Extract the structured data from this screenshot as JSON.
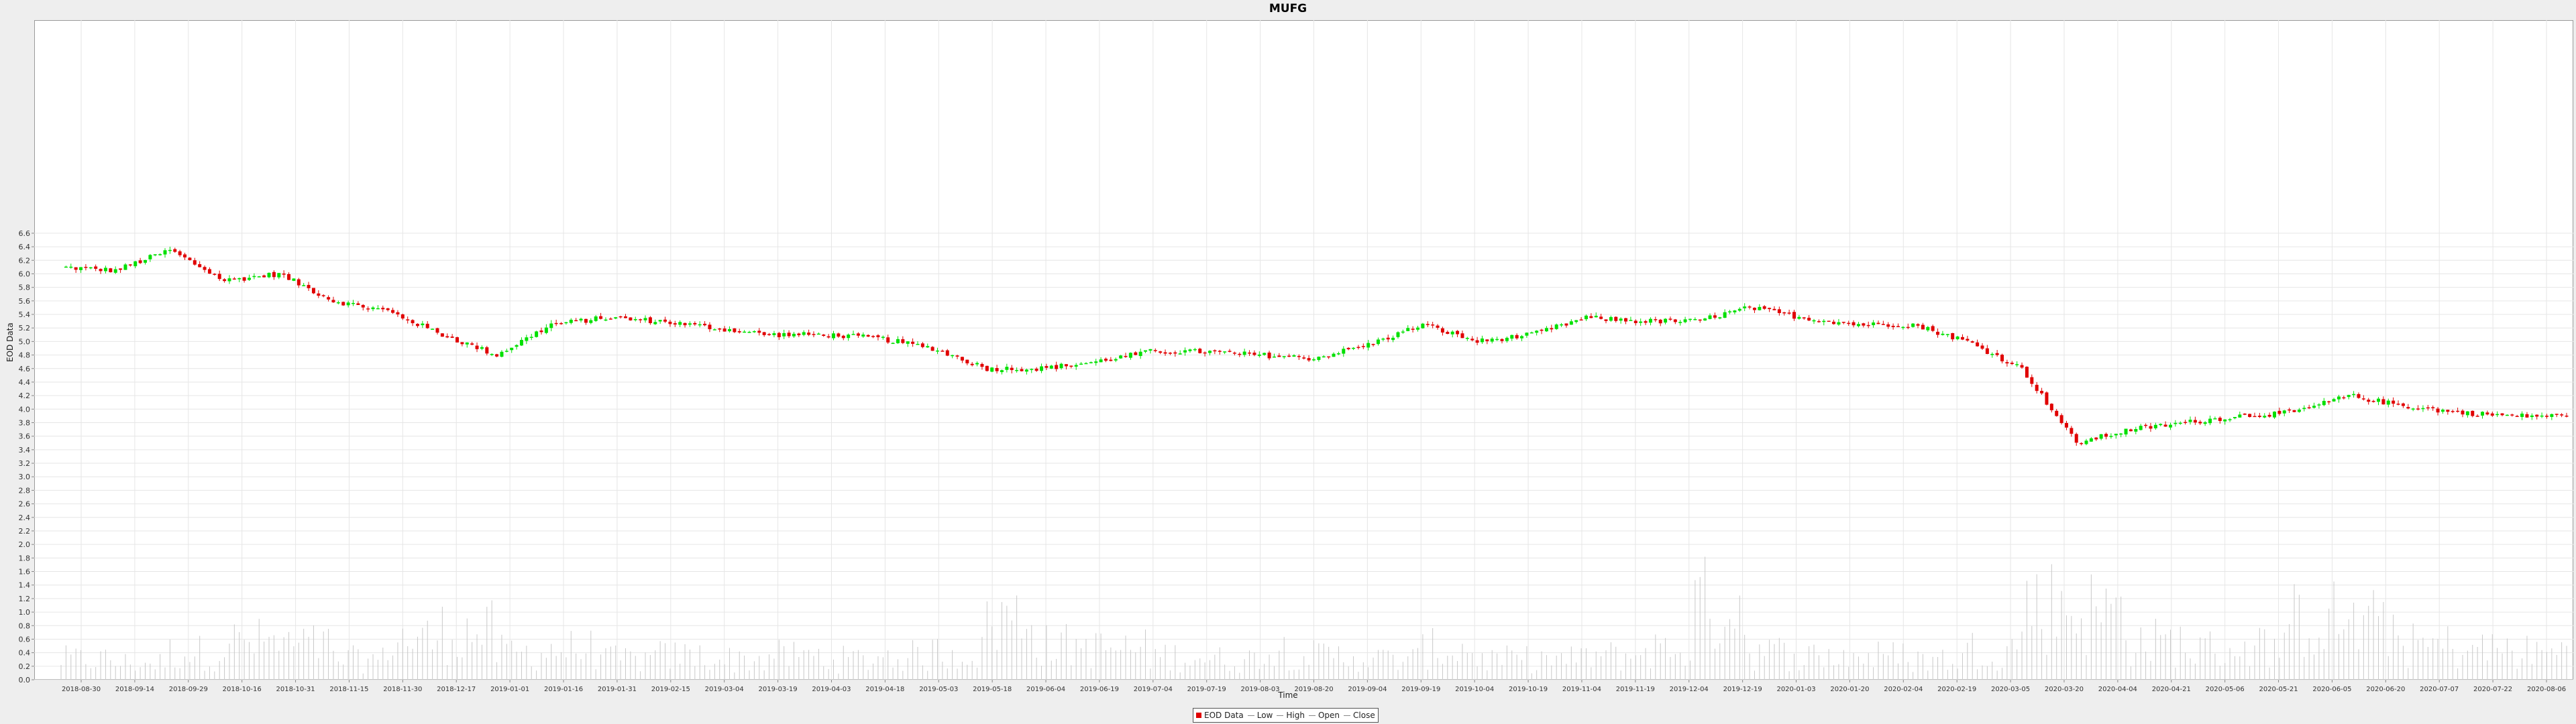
{
  "chart_data": {
    "type": "candlestick",
    "title": "MUFG",
    "xlabel": "Time",
    "ylabel": "EOD Data",
    "ylim": [
      0,
      9.75
    ],
    "y_ticks": [
      "0.0",
      "0.2",
      "0.4",
      "0.6",
      "0.8",
      "1.0",
      "1.2",
      "1.4",
      "1.6",
      "1.8",
      "2.0",
      "2.2",
      "2.4",
      "2.6",
      "2.8",
      "3.0",
      "3.2",
      "3.4",
      "3.6",
      "3.8",
      "4.0",
      "4.2",
      "4.4",
      "4.6",
      "4.8",
      "5.0",
      "5.2",
      "5.4",
      "5.6",
      "5.8",
      "6.0",
      "6.2",
      "6.4",
      "6.6"
    ],
    "x_ticks": [
      "2018-08-30",
      "2018-09-14",
      "2018-09-29",
      "2018-10-16",
      "2018-10-31",
      "2018-11-15",
      "2018-11-30",
      "2018-12-17",
      "2019-01-01",
      "2019-01-16",
      "2019-01-31",
      "2019-02-15",
      "2019-03-04",
      "2019-03-19",
      "2019-04-03",
      "2019-04-18",
      "2019-05-03",
      "2019-05-18",
      "2019-06-04",
      "2019-06-19",
      "2019-07-04",
      "2019-07-19",
      "2019-08-03",
      "2019-08-20",
      "2019-09-04",
      "2019-09-19",
      "2019-10-04",
      "2019-10-19",
      "2019-11-04",
      "2019-11-19",
      "2019-12-04",
      "2019-12-19",
      "2020-01-03",
      "2020-01-20",
      "2020-02-04",
      "2020-02-19",
      "2020-03-05",
      "2020-03-20",
      "2020-04-04",
      "2020-04-21",
      "2020-05-06",
      "2020-05-21",
      "2020-06-05",
      "2020-06-20",
      "2020-07-07",
      "2020-07-22",
      "2020-08-06"
    ],
    "grid": true,
    "legend_position": "bottom-center",
    "legend": [
      "EOD Data",
      "Low",
      "High",
      "Open",
      "Close"
    ],
    "colors": {
      "up": "#00e000",
      "down": "#e00000",
      "volume": "#c8c8c8",
      "grid": "#e6e6e6"
    },
    "series": [
      {
        "name": "Close",
        "x": [
          "2018-08-30",
          "2018-09-14",
          "2018-09-29",
          "2018-10-16",
          "2018-10-31",
          "2018-11-15",
          "2018-11-30",
          "2018-12-17",
          "2019-01-01",
          "2019-01-16",
          "2019-01-31",
          "2019-02-15",
          "2019-03-04",
          "2019-03-19",
          "2019-04-03",
          "2019-04-18",
          "2019-05-03",
          "2019-05-18",
          "2019-06-04",
          "2019-06-19",
          "2019-07-04",
          "2019-07-19",
          "2019-08-03",
          "2019-08-20",
          "2019-09-04",
          "2019-09-19",
          "2019-10-04",
          "2019-10-19",
          "2019-11-04",
          "2019-11-19",
          "2019-12-04",
          "2019-12-19",
          "2020-01-03",
          "2020-01-20",
          "2020-02-04",
          "2020-02-19",
          "2020-03-05",
          "2020-03-20",
          "2020-04-04",
          "2020-04-21",
          "2020-05-06",
          "2020-05-21",
          "2020-06-05",
          "2020-06-20",
          "2020-07-07",
          "2020-07-22",
          "2020-08-06"
        ],
        "values": [
          6.1,
          6.05,
          6.35,
          5.9,
          6.0,
          5.6,
          5.45,
          5.1,
          4.8,
          5.25,
          5.35,
          5.3,
          5.2,
          5.1,
          5.1,
          5.05,
          4.9,
          4.6,
          4.6,
          4.7,
          4.85,
          4.85,
          4.8,
          4.75,
          4.95,
          5.25,
          5.0,
          5.1,
          5.35,
          5.3,
          5.3,
          5.5,
          5.35,
          5.25,
          5.25,
          5.0,
          4.6,
          3.5,
          3.7,
          3.8,
          3.9,
          3.95,
          4.2,
          4.05,
          3.95,
          3.9,
          3.9
        ]
      },
      {
        "name": "Volume",
        "values": [
          0.3,
          0.25,
          0.4,
          0.55,
          0.5,
          0.3,
          0.6,
          0.7,
          0.4,
          0.45,
          0.3,
          0.35,
          0.3,
          0.35,
          0.3,
          0.35,
          0.4,
          0.9,
          0.5,
          0.45,
          0.35,
          0.3,
          0.45,
          0.35,
          0.3,
          0.45,
          0.3,
          0.3,
          0.35,
          0.45,
          1.1,
          0.4,
          0.35,
          0.35,
          0.3,
          0.45,
          1.1,
          1.0,
          0.55,
          0.45,
          0.5,
          0.9,
          0.8,
          0.5,
          0.45,
          0.4,
          0.5
        ]
      }
    ]
  }
}
